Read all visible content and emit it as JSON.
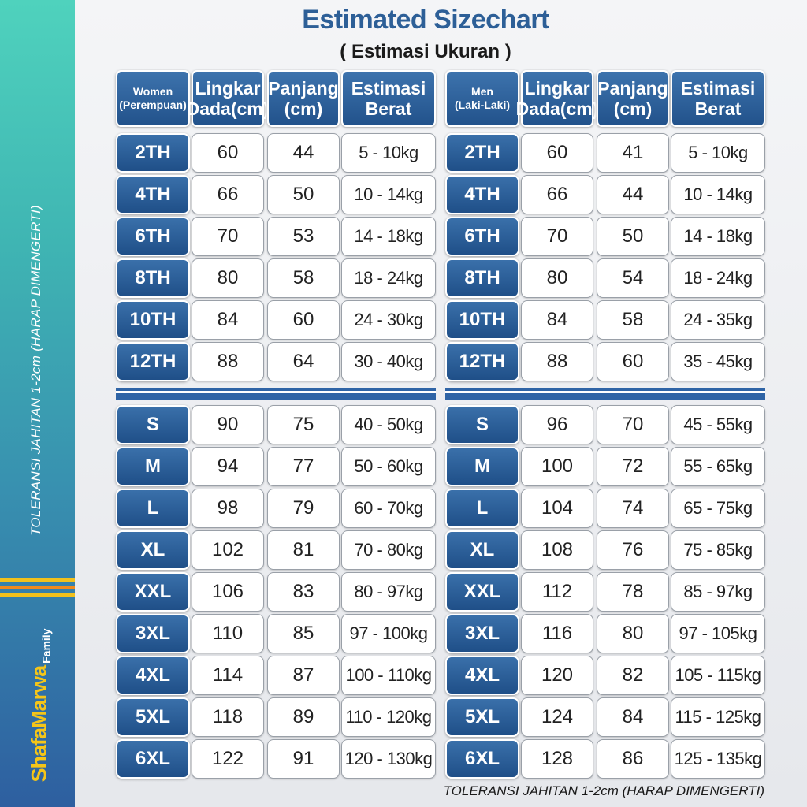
{
  "title": "Estimated Sizechart",
  "subtitle": "( Estimasi Ukuran )",
  "side_note": "TOLERANSI JAHITAN 1-2cm (HARAP DIMENGERTI)",
  "footer_note": "TOLERANSI JAHITAN 1-2cm (HARAP DIMENGERTI)",
  "brand": {
    "shafa": "Shafa",
    "marwa": "Marwa",
    "family": "Family"
  },
  "colors": {
    "header_blue": "#2d5f97",
    "brand_yellow": "#f5c518",
    "strip_teal": "#4fd2bd"
  },
  "tables": [
    {
      "headers": [
        "Women\n(Perempuan)",
        "Lingkar\nDada(cm)",
        "Panjang\n(cm)",
        "Estimasi\nBerat"
      ],
      "kids": [
        [
          "2TH",
          "60",
          "44",
          "5 - 10kg"
        ],
        [
          "4TH",
          "66",
          "50",
          "10 - 14kg"
        ],
        [
          "6TH",
          "70",
          "53",
          "14 - 18kg"
        ],
        [
          "8TH",
          "80",
          "58",
          "18 - 24kg"
        ],
        [
          "10TH",
          "84",
          "60",
          "24 - 30kg"
        ],
        [
          "12TH",
          "88",
          "64",
          "30 - 40kg"
        ]
      ],
      "adults": [
        [
          "S",
          "90",
          "75",
          "40 - 50kg"
        ],
        [
          "M",
          "94",
          "77",
          "50 - 60kg"
        ],
        [
          "L",
          "98",
          "79",
          "60 - 70kg"
        ],
        [
          "XL",
          "102",
          "81",
          "70 - 80kg"
        ],
        [
          "XXL",
          "106",
          "83",
          "80 - 97kg"
        ],
        [
          "3XL",
          "110",
          "85",
          "97 - 100kg"
        ],
        [
          "4XL",
          "114",
          "87",
          "100 - 110kg"
        ],
        [
          "5XL",
          "118",
          "89",
          "110 - 120kg"
        ],
        [
          "6XL",
          "122",
          "91",
          "120 - 130kg"
        ]
      ]
    },
    {
      "headers": [
        "Men\n(Laki-Laki)",
        "Lingkar\nDada(cm)",
        "Panjang\n(cm)",
        "Estimasi\nBerat"
      ],
      "kids": [
        [
          "2TH",
          "60",
          "41",
          "5 - 10kg"
        ],
        [
          "4TH",
          "66",
          "44",
          "10 - 14kg"
        ],
        [
          "6TH",
          "70",
          "50",
          "14 - 18kg"
        ],
        [
          "8TH",
          "80",
          "54",
          "18 - 24kg"
        ],
        [
          "10TH",
          "84",
          "58",
          "24 - 35kg"
        ],
        [
          "12TH",
          "88",
          "60",
          "35 - 45kg"
        ]
      ],
      "adults": [
        [
          "S",
          "96",
          "70",
          "45 - 55kg"
        ],
        [
          "M",
          "100",
          "72",
          "55 - 65kg"
        ],
        [
          "L",
          "104",
          "74",
          "65 - 75kg"
        ],
        [
          "XL",
          "108",
          "76",
          "75 - 85kg"
        ],
        [
          "XXL",
          "112",
          "78",
          "85 - 97kg"
        ],
        [
          "3XL",
          "116",
          "80",
          "97 - 105kg"
        ],
        [
          "4XL",
          "120",
          "82",
          "105 - 115kg"
        ],
        [
          "5XL",
          "124",
          "84",
          "115 - 125kg"
        ],
        [
          "6XL",
          "128",
          "86",
          "125 - 135kg"
        ]
      ]
    }
  ]
}
